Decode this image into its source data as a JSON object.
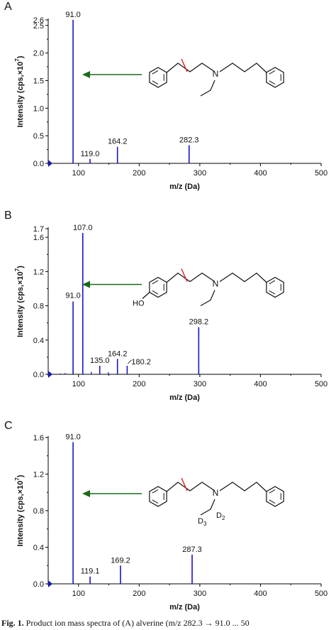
{
  "caption": {
    "label": "Fig. 1.",
    "text": "Product ion mass spectra of (A) alverine (m/z 282.3 → 91.0 ... 50"
  },
  "chart_data": [
    {
      "type": "bar",
      "panel": "A",
      "xlabel": "m/z (Da)",
      "ylabel": "Intensity (cps,×10^7)",
      "xlim": [
        50,
        500
      ],
      "ylim": [
        0,
        2.6
      ],
      "xticks": [
        100,
        200,
        300,
        400,
        500
      ],
      "xticklabels": [
        "100",
        "200",
        "300",
        "400",
        "500"
      ],
      "yticks": [
        0.0,
        0.5,
        1.0,
        1.5,
        2.0,
        2.5,
        2.6
      ],
      "yticklabels": [
        "0.0",
        "0.5",
        "1.0",
        "1.5",
        "2.0",
        "2.5",
        "2.6"
      ],
      "peaks": [
        {
          "mz": 91.0,
          "intensity": 2.6,
          "label": "91.0"
        },
        {
          "mz": 119.0,
          "intensity": 0.08,
          "label": "119.0"
        },
        {
          "mz": 164.2,
          "intensity": 0.3,
          "label": "164.2"
        },
        {
          "mz": 282.3,
          "intensity": 0.33,
          "label": "282.3"
        }
      ],
      "structure": {
        "substituent": "",
        "n_group": ""
      },
      "grid": false
    },
    {
      "type": "bar",
      "panel": "B",
      "xlabel": "m/z (Da)",
      "ylabel": "Intensity (cps,×10^7)",
      "xlim": [
        50,
        500
      ],
      "ylim": [
        0,
        1.7
      ],
      "xticks": [
        100,
        200,
        300,
        400,
        500
      ],
      "xticklabels": [
        "100",
        "200",
        "300",
        "400",
        "500"
      ],
      "yticks": [
        0.0,
        0.4,
        0.8,
        1.2,
        1.6,
        1.7
      ],
      "yticklabels": [
        "0.0",
        "0.4",
        "0.8",
        "1.2",
        "1.6",
        "1.7"
      ],
      "peaks": [
        {
          "mz": 91.0,
          "intensity": 0.85,
          "label": "91.0"
        },
        {
          "mz": 107.0,
          "intensity": 1.65,
          "label": "107.0"
        },
        {
          "mz": 135.0,
          "intensity": 0.1,
          "label": "135.0"
        },
        {
          "mz": 164.2,
          "intensity": 0.18,
          "label": "164.2"
        },
        {
          "mz": 180.2,
          "intensity": 0.1,
          "label": "180.2"
        },
        {
          "mz": 298.2,
          "intensity": 0.55,
          "label": "298.2"
        }
      ],
      "minor_peaks": [
        {
          "mz": 70.0,
          "intensity": 0.01
        },
        {
          "mz": 78.0,
          "intensity": 0.015
        },
        {
          "mz": 121.0,
          "intensity": 0.03
        },
        {
          "mz": 149.0,
          "intensity": 0.025
        }
      ],
      "structure": {
        "substituent": "HO",
        "n_group": ""
      },
      "grid": false
    },
    {
      "type": "bar",
      "panel": "C",
      "xlabel": "m/z (Da)",
      "ylabel": "Intensity (cps,×10^7)",
      "xlim": [
        50,
        500
      ],
      "ylim": [
        0,
        1.6
      ],
      "xticks": [
        100,
        200,
        300,
        400,
        500
      ],
      "xticklabels": [
        "100",
        "200",
        "300",
        "400",
        "500"
      ],
      "yticks": [
        0.0,
        0.4,
        0.8,
        1.2,
        1.6
      ],
      "yticklabels": [
        "0.0",
        "0.4",
        "0.8",
        "1.2",
        "1.6"
      ],
      "peaks": [
        {
          "mz": 91.0,
          "intensity": 1.55,
          "label": "91.0"
        },
        {
          "mz": 119.1,
          "intensity": 0.08,
          "label": "119.1"
        },
        {
          "mz": 169.2,
          "intensity": 0.2,
          "label": "169.2"
        },
        {
          "mz": 287.3,
          "intensity": 0.32,
          "label": "287.3"
        }
      ],
      "structure": {
        "substituent": "",
        "n_group": "D3 D2"
      },
      "grid": false
    }
  ],
  "colors": {
    "peak": "#1515c8",
    "axis": "#000000",
    "arrow": "#1a6b1a",
    "cut": "#e02020",
    "marker": "#1a1aa8"
  }
}
